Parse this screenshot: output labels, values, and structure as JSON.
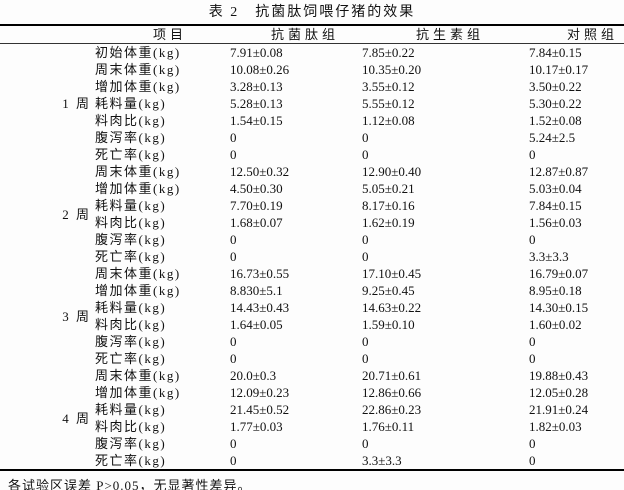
{
  "title": "表 2　抗菌肽饲喂仔猪的效果",
  "header": {
    "item": "项目",
    "groups": [
      "抗菌肽组",
      "抗生素组",
      "对照组"
    ]
  },
  "weeks": [
    {
      "label": "1 周",
      "rows": [
        {
          "item": "初始体重(kg)",
          "values": [
            "7.91±0.08",
            "7.85±0.22",
            "7.84±0.15"
          ]
        },
        {
          "item": "周末体重(kg)",
          "values": [
            "10.08±0.26",
            "10.35±0.20",
            "10.17±0.17"
          ]
        },
        {
          "item": "增加体重(kg)",
          "values": [
            "3.28±0.13",
            "3.55±0.12",
            "3.50±0.22"
          ]
        },
        {
          "item": "耗料量(kg)",
          "values": [
            "5.28±0.13",
            "5.55±0.12",
            "5.30±0.22"
          ]
        },
        {
          "item": "料肉比(kg)",
          "values": [
            "1.54±0.15",
            "1.12±0.08",
            "1.52±0.08"
          ]
        },
        {
          "item": "腹泻率(kg)",
          "values": [
            "0",
            "0",
            "5.24±2.5"
          ]
        },
        {
          "item": "死亡率(kg)",
          "values": [
            "0",
            "0",
            "0"
          ]
        }
      ]
    },
    {
      "label": "2 周",
      "rows": [
        {
          "item": "周末体重(kg)",
          "values": [
            "12.50±0.32",
            "12.90±0.40",
            "12.87±0.87"
          ]
        },
        {
          "item": "增加体重(kg)",
          "values": [
            "4.50±0.30",
            "5.05±0.21",
            "5.03±0.04"
          ]
        },
        {
          "item": "耗料量(kg)",
          "values": [
            "7.70±0.19",
            "8.17±0.16",
            "7.84±0.15"
          ]
        },
        {
          "item": "料肉比(kg)",
          "values": [
            "1.68±0.07",
            "1.62±0.19",
            "1.56±0.03"
          ]
        },
        {
          "item": "腹泻率(kg)",
          "values": [
            "0",
            "0",
            "0"
          ]
        },
        {
          "item": "死亡率(kg)",
          "values": [
            "0",
            "0",
            "3.3±3.3"
          ]
        }
      ]
    },
    {
      "label": "3 周",
      "rows": [
        {
          "item": "周末体重(kg)",
          "values": [
            "16.73±0.55",
            "17.10±0.45",
            "16.79±0.07"
          ]
        },
        {
          "item": "增加体重(kg)",
          "values": [
            "8.830±5.1",
            "9.25±0.45",
            "8.95±0.18"
          ]
        },
        {
          "item": "耗料量(kg)",
          "values": [
            "14.43±0.43",
            "14.63±0.22",
            "14.30±0.15"
          ]
        },
        {
          "item": "料肉比(kg)",
          "values": [
            "1.64±0.05",
            "1.59±0.10",
            "1.60±0.02"
          ]
        },
        {
          "item": "腹泻率(kg)",
          "values": [
            "0",
            "0",
            "0"
          ]
        },
        {
          "item": "死亡率(kg)",
          "values": [
            "0",
            "0",
            "0"
          ]
        }
      ]
    },
    {
      "label": "4 周",
      "rows": [
        {
          "item": "周末体重(kg)",
          "values": [
            "20.0±0.3",
            "20.71±0.61",
            "19.88±0.43"
          ]
        },
        {
          "item": "增加体重(kg)",
          "values": [
            "12.09±0.23",
            "12.86±0.66",
            "12.05±0.28"
          ]
        },
        {
          "item": "耗料量(kg)",
          "values": [
            "21.45±0.52",
            "22.86±0.23",
            "21.91±0.24"
          ]
        },
        {
          "item": "料肉比(kg)",
          "values": [
            "1.77±0.03",
            "1.76±0.11",
            "1.82±0.03"
          ]
        },
        {
          "item": "腹泻率(kg)",
          "values": [
            "0",
            "0",
            "0"
          ]
        },
        {
          "item": "死亡率(kg)",
          "values": [
            "0",
            "3.3±3.3",
            "0"
          ]
        }
      ]
    }
  ],
  "footnote": "各试验区误差 P>0.05，无显著性差异。"
}
